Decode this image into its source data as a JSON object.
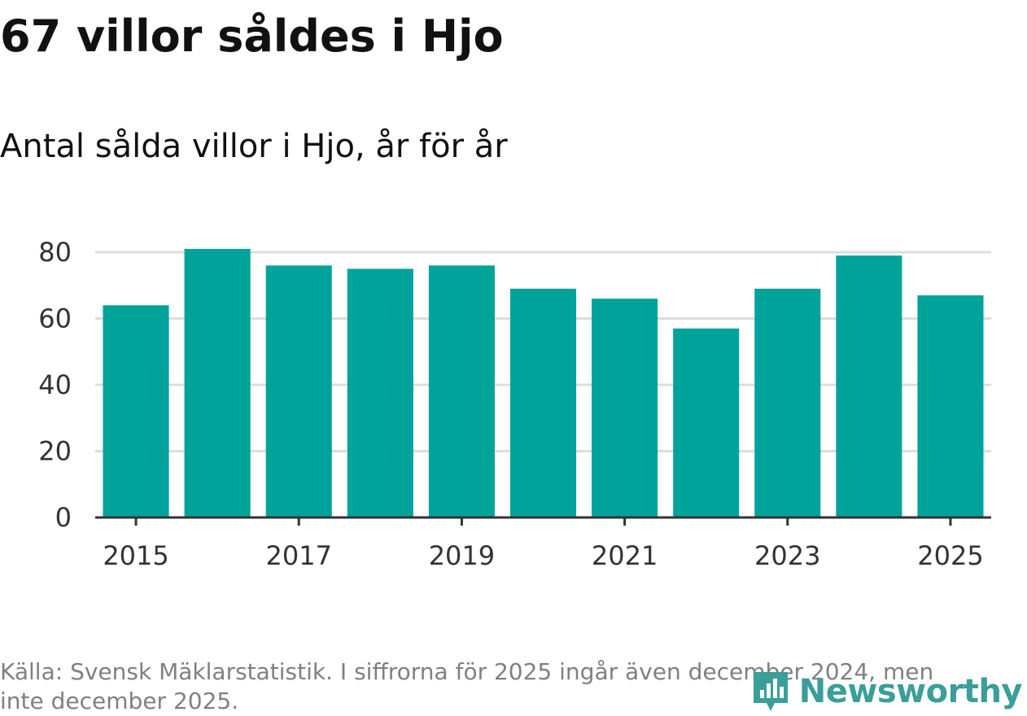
{
  "header": {
    "title": "67 villor såldes i Hjo",
    "subtitle": "Antal sålda villor i Hjo, år för år"
  },
  "chart_data": {
    "type": "bar",
    "categories": [
      "2015",
      "2016",
      "2017",
      "2018",
      "2019",
      "2020",
      "2021",
      "2022",
      "2023",
      "2024",
      "2025"
    ],
    "values": [
      64,
      81,
      76,
      75,
      76,
      69,
      66,
      57,
      69,
      79,
      67
    ],
    "x_tick_labels": [
      "2015",
      "2017",
      "2019",
      "2021",
      "2023",
      "2025"
    ],
    "y_tick_labels": [
      "0",
      "20",
      "40",
      "60",
      "80"
    ],
    "ylim": [
      0,
      80
    ],
    "grid": true,
    "bar_color": "#00a39a",
    "gridline_color": "#dddddd",
    "axis_color": "#333333"
  },
  "footer": {
    "source": "Källa: Svensk Mäklarstatistik. I siffrorna för 2025 ingår även december 2024, men inte december 2025.",
    "logo_text": "Newsworthy",
    "logo_icon": "newsworthy-bar-logo-icon",
    "logo_color": "#3a9e99"
  }
}
